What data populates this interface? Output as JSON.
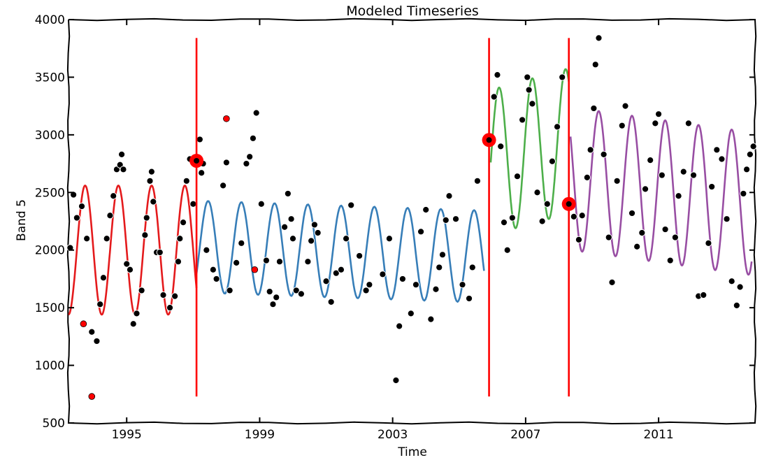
{
  "chart_data": {
    "type": "line",
    "title": "Modeled Timeseries",
    "xlabel": "Time",
    "ylabel": "Band 5",
    "xlim": [
      1993.25,
      2013.9
    ],
    "ylim": [
      500,
      4000
    ],
    "x_ticks": [
      1995,
      1999,
      2003,
      2007,
      2011
    ],
    "y_ticks": [
      500,
      1000,
      1500,
      2000,
      2500,
      3000,
      3500,
      4000
    ],
    "grid": false,
    "legend": "none",
    "colors": {
      "segment_1": "#e41a1c",
      "segment_2": "#377eb8",
      "segment_3": "#4daf4a",
      "segment_4": "#984ea3",
      "break": "#ff0000",
      "observation": "#000000",
      "outlier": "#ff0000"
    },
    "breaks": [
      {
        "x": 1997.1,
        "y": [
          730,
          3840
        ]
      },
      {
        "x": 2005.9,
        "y": [
          730,
          3840
        ]
      },
      {
        "x": 2008.3,
        "y": [
          730,
          3840
        ]
      }
    ],
    "break_markers": [
      {
        "x": 1997.1,
        "y": 2775
      },
      {
        "x": 2005.9,
        "y": 2955
      },
      {
        "x": 2008.3,
        "y": 2400
      }
    ],
    "series": [
      {
        "start": 1993.25,
        "end": 1997.1,
        "mean": 2000,
        "amplitude": 560,
        "trend": 0,
        "phase": 1993.75
      },
      {
        "start": 1997.1,
        "end": 2005.75,
        "mean": 2030,
        "amplitude": 400,
        "trend": -10,
        "phase": 1997.45
      },
      {
        "start": 2005.95,
        "end": 2008.3,
        "mean": 2760,
        "amplitude": 630,
        "trend": 80,
        "phase": 2006.2
      },
      {
        "start": 2008.35,
        "end": 2013.8,
        "mean": 2620,
        "amplitude": 620,
        "trend": -40,
        "phase": 2009.2
      }
    ],
    "observations": [
      [
        1993.3,
        2020
      ],
      [
        1993.4,
        2480
      ],
      [
        1993.5,
        2280
      ],
      [
        1993.65,
        2380
      ],
      [
        1993.8,
        2100
      ],
      [
        1993.95,
        1290
      ],
      [
        1994.1,
        1210
      ],
      [
        1994.2,
        1530
      ],
      [
        1994.3,
        1760
      ],
      [
        1994.4,
        2100
      ],
      [
        1994.5,
        2300
      ],
      [
        1994.6,
        2470
      ],
      [
        1994.7,
        2700
      ],
      [
        1994.8,
        2740
      ],
      [
        1994.85,
        2830
      ],
      [
        1994.9,
        2700
      ],
      [
        1995.0,
        1880
      ],
      [
        1995.1,
        1830
      ],
      [
        1995.2,
        1360
      ],
      [
        1995.3,
        1450
      ],
      [
        1995.45,
        1650
      ],
      [
        1995.55,
        2130
      ],
      [
        1995.6,
        2280
      ],
      [
        1995.7,
        2600
      ],
      [
        1995.75,
        2680
      ],
      [
        1995.8,
        2420
      ],
      [
        1995.9,
        1980
      ],
      [
        1996.0,
        1980
      ],
      [
        1996.1,
        1610
      ],
      [
        1996.3,
        1500
      ],
      [
        1996.45,
        1600
      ],
      [
        1996.55,
        1900
      ],
      [
        1996.6,
        2100
      ],
      [
        1996.7,
        2240
      ],
      [
        1996.8,
        2600
      ],
      [
        1996.9,
        2790
      ],
      [
        1997.0,
        2400
      ],
      [
        1997.2,
        2960
      ],
      [
        1997.25,
        2670
      ],
      [
        1997.3,
        2750
      ],
      [
        1997.4,
        2000
      ],
      [
        1997.6,
        1830
      ],
      [
        1997.7,
        1750
      ],
      [
        1997.9,
        2560
      ],
      [
        1998.0,
        2760
      ],
      [
        1998.1,
        1650
      ],
      [
        1998.3,
        1890
      ],
      [
        1998.45,
        2060
      ],
      [
        1998.6,
        2750
      ],
      [
        1998.7,
        2810
      ],
      [
        1998.8,
        2970
      ],
      [
        1998.9,
        3190
      ],
      [
        1999.05,
        2400
      ],
      [
        1999.2,
        1910
      ],
      [
        1999.3,
        1640
      ],
      [
        1999.4,
        1530
      ],
      [
        1999.5,
        1590
      ],
      [
        1999.6,
        1900
      ],
      [
        1999.75,
        2200
      ],
      [
        1999.85,
        2490
      ],
      [
        1999.95,
        2270
      ],
      [
        2000.0,
        2100
      ],
      [
        2000.1,
        1650
      ],
      [
        2000.25,
        1620
      ],
      [
        2000.45,
        1900
      ],
      [
        2000.55,
        2080
      ],
      [
        2000.65,
        2220
      ],
      [
        2000.75,
        2150
      ],
      [
        2001.0,
        1730
      ],
      [
        2001.15,
        1550
      ],
      [
        2001.3,
        1800
      ],
      [
        2001.45,
        1830
      ],
      [
        2001.6,
        2100
      ],
      [
        2001.75,
        2390
      ],
      [
        2002.0,
        1950
      ],
      [
        2002.2,
        1650
      ],
      [
        2002.3,
        1700
      ],
      [
        2002.7,
        1790
      ],
      [
        2002.9,
        2100
      ],
      [
        2003.1,
        870
      ],
      [
        2003.2,
        1340
      ],
      [
        2003.3,
        1750
      ],
      [
        2003.55,
        1450
      ],
      [
        2003.7,
        1700
      ],
      [
        2003.85,
        2160
      ],
      [
        2004.0,
        2350
      ],
      [
        2004.15,
        1400
      ],
      [
        2004.3,
        1660
      ],
      [
        2004.4,
        1850
      ],
      [
        2004.5,
        1960
      ],
      [
        2004.6,
        2260
      ],
      [
        2004.7,
        2470
      ],
      [
        2004.9,
        2270
      ],
      [
        2005.1,
        1700
      ],
      [
        2005.3,
        1580
      ],
      [
        2005.4,
        1850
      ],
      [
        2005.55,
        2600
      ],
      [
        2006.05,
        3330
      ],
      [
        2006.15,
        3520
      ],
      [
        2006.25,
        2900
      ],
      [
        2006.35,
        2240
      ],
      [
        2006.45,
        2000
      ],
      [
        2006.6,
        2280
      ],
      [
        2006.75,
        2640
      ],
      [
        2006.9,
        3130
      ],
      [
        2007.05,
        3500
      ],
      [
        2007.1,
        3390
      ],
      [
        2007.2,
        3270
      ],
      [
        2007.35,
        2500
      ],
      [
        2007.5,
        2250
      ],
      [
        2007.65,
        2400
      ],
      [
        2007.8,
        2770
      ],
      [
        2007.95,
        3070
      ],
      [
        2008.1,
        3500
      ],
      [
        2008.45,
        2290
      ],
      [
        2008.6,
        2090
      ],
      [
        2008.7,
        2300
      ],
      [
        2008.85,
        2630
      ],
      [
        2008.95,
        2870
      ],
      [
        2009.05,
        3230
      ],
      [
        2009.1,
        3610
      ],
      [
        2009.2,
        3840
      ],
      [
        2009.35,
        2830
      ],
      [
        2009.5,
        2110
      ],
      [
        2009.6,
        1720
      ],
      [
        2009.75,
        2600
      ],
      [
        2009.9,
        3080
      ],
      [
        2010.0,
        3250
      ],
      [
        2010.2,
        2320
      ],
      [
        2010.35,
        2030
      ],
      [
        2010.5,
        2150
      ],
      [
        2010.6,
        2530
      ],
      [
        2010.75,
        2780
      ],
      [
        2010.9,
        3100
      ],
      [
        2011.0,
        3180
      ],
      [
        2011.1,
        2650
      ],
      [
        2011.2,
        2180
      ],
      [
        2011.35,
        1910
      ],
      [
        2011.5,
        2110
      ],
      [
        2011.6,
        2470
      ],
      [
        2011.75,
        2680
      ],
      [
        2011.9,
        3100
      ],
      [
        2012.05,
        2650
      ],
      [
        2012.2,
        1600
      ],
      [
        2012.35,
        1610
      ],
      [
        2012.5,
        2060
      ],
      [
        2012.6,
        2550
      ],
      [
        2012.75,
        2870
      ],
      [
        2012.9,
        2790
      ],
      [
        2013.05,
        2270
      ],
      [
        2013.2,
        1730
      ],
      [
        2013.35,
        1520
      ],
      [
        2013.45,
        1680
      ],
      [
        2013.55,
        2490
      ],
      [
        2013.65,
        2700
      ],
      [
        2013.75,
        2830
      ],
      [
        2013.85,
        2900
      ]
    ],
    "outliers": [
      [
        1993.7,
        1360
      ],
      [
        1993.95,
        730
      ],
      [
        1998.0,
        3140
      ],
      [
        1998.85,
        1830
      ]
    ]
  }
}
